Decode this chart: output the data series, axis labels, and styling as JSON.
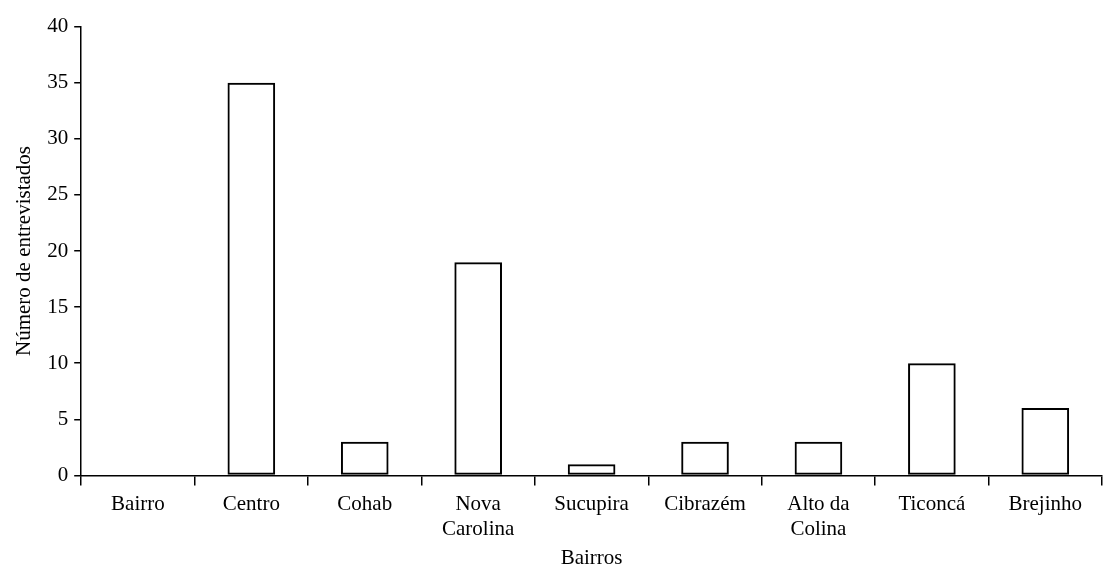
{
  "chart_data": {
    "type": "bar",
    "xlabel": "Bairros",
    "ylabel": "Número de entrevistados",
    "categories": [
      "Bairro",
      "Centro",
      "Cohab",
      "Nova Carolina",
      "Sucupira",
      "Cibrazém",
      "Alto da Colina",
      "Ticoncá",
      "Brejinho"
    ],
    "values": [
      0,
      35,
      3,
      19,
      1,
      3,
      3,
      10,
      6
    ],
    "color": "#000000",
    "ylim": [
      0,
      40
    ],
    "yticks": [
      0,
      5,
      10,
      15,
      20,
      25,
      30,
      35,
      40
    ],
    "grid": false,
    "legend": false
  }
}
